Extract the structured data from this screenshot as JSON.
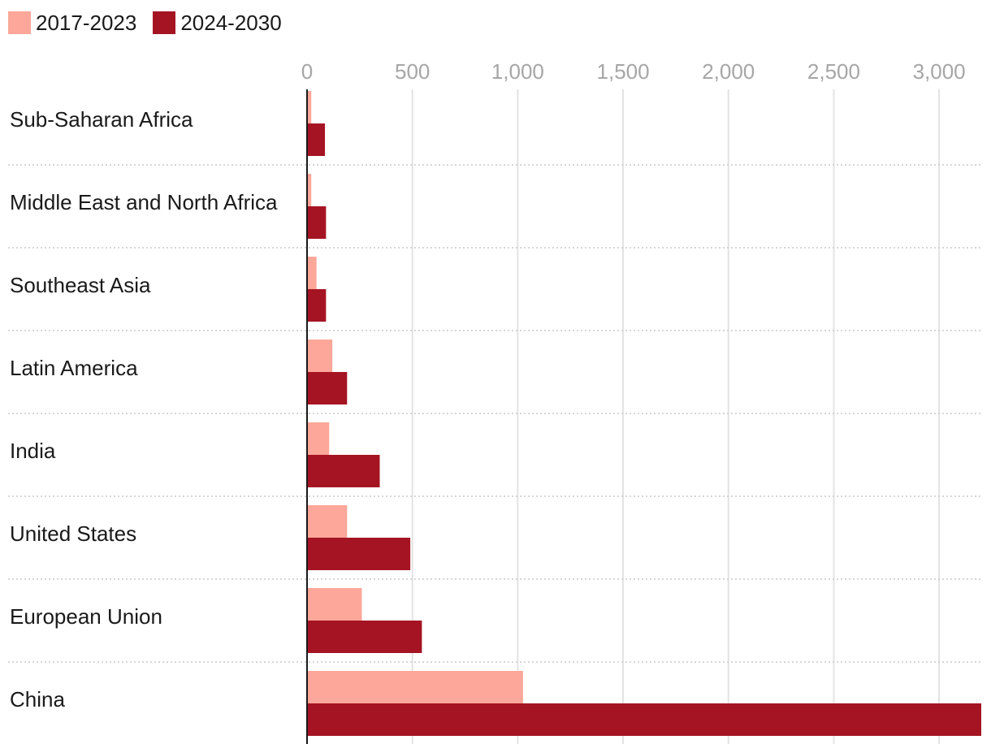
{
  "chart_data": {
    "type": "bar",
    "orientation": "horizontal",
    "title": "",
    "xlabel": "",
    "ylabel": "",
    "xlim": [
      0,
      3200
    ],
    "xticks": [
      0,
      500,
      1000,
      1500,
      2000,
      2500,
      3000
    ],
    "xtick_labels": [
      "0",
      "500",
      "1,000",
      "1,500",
      "2,000",
      "2,500",
      "3,000"
    ],
    "legend_position": "top-left",
    "categories": [
      "Sub-Saharan Africa",
      "Middle East and North Africa",
      "Southeast Asia",
      "Latin America",
      "India",
      "United States",
      "European Union",
      "China"
    ],
    "series": [
      {
        "name": "2017-2023",
        "color": "#fca799",
        "values": [
          20,
          20,
          45,
          120,
          105,
          190,
          260,
          1025
        ]
      },
      {
        "name": "2024-2030",
        "color": "#a51423",
        "values": [
          85,
          90,
          90,
          190,
          345,
          490,
          545,
          3200
        ]
      }
    ]
  }
}
